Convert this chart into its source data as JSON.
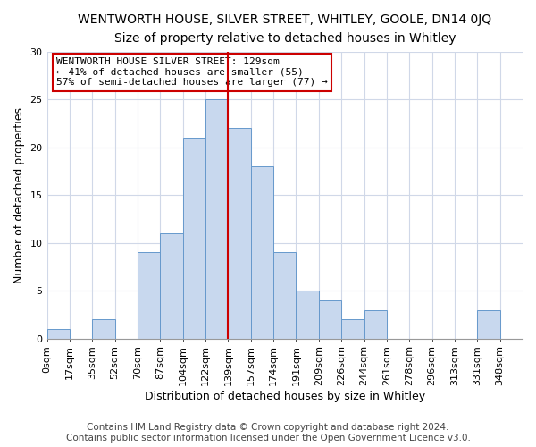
{
  "title": "WENTWORTH HOUSE, SILVER STREET, WHITLEY, GOOLE, DN14 0JQ",
  "subtitle": "Size of property relative to detached houses in Whitley",
  "xlabel": "Distribution of detached houses by size in Whitley",
  "ylabel": "Number of detached properties",
  "bin_labels": [
    "0sqm",
    "17sqm",
    "35sqm",
    "52sqm",
    "70sqm",
    "87sqm",
    "104sqm",
    "122sqm",
    "139sqm",
    "157sqm",
    "174sqm",
    "191sqm",
    "209sqm",
    "226sqm",
    "244sqm",
    "261sqm",
    "278sqm",
    "296sqm",
    "313sqm",
    "331sqm",
    "348sqm"
  ],
  "bar_values": [
    1,
    0,
    2,
    0,
    9,
    11,
    21,
    25,
    22,
    18,
    9,
    5,
    4,
    2,
    3,
    0,
    0,
    0,
    0,
    3,
    0
  ],
  "bar_color": "#c8d8ee",
  "bar_edgecolor": "#6699cc",
  "vline_x_index": 8,
  "vline_color": "#cc0000",
  "ylim": [
    0,
    30
  ],
  "yticks": [
    0,
    5,
    10,
    15,
    20,
    25,
    30
  ],
  "annotation_title": "WENTWORTH HOUSE SILVER STREET: 129sqm",
  "annotation_line1": "← 41% of detached houses are smaller (55)",
  "annotation_line2": "57% of semi-detached houses are larger (77) →",
  "annotation_box_color": "#ffffff",
  "annotation_box_edgecolor": "#cc0000",
  "footer1": "Contains HM Land Registry data © Crown copyright and database right 2024.",
  "footer2": "Contains public sector information licensed under the Open Government Licence v3.0.",
  "background_color": "#ffffff",
  "grid_color": "#d0d8e8",
  "title_fontsize": 10,
  "subtitle_fontsize": 9.5,
  "axis_label_fontsize": 9,
  "tick_fontsize": 8,
  "footer_fontsize": 7.5
}
